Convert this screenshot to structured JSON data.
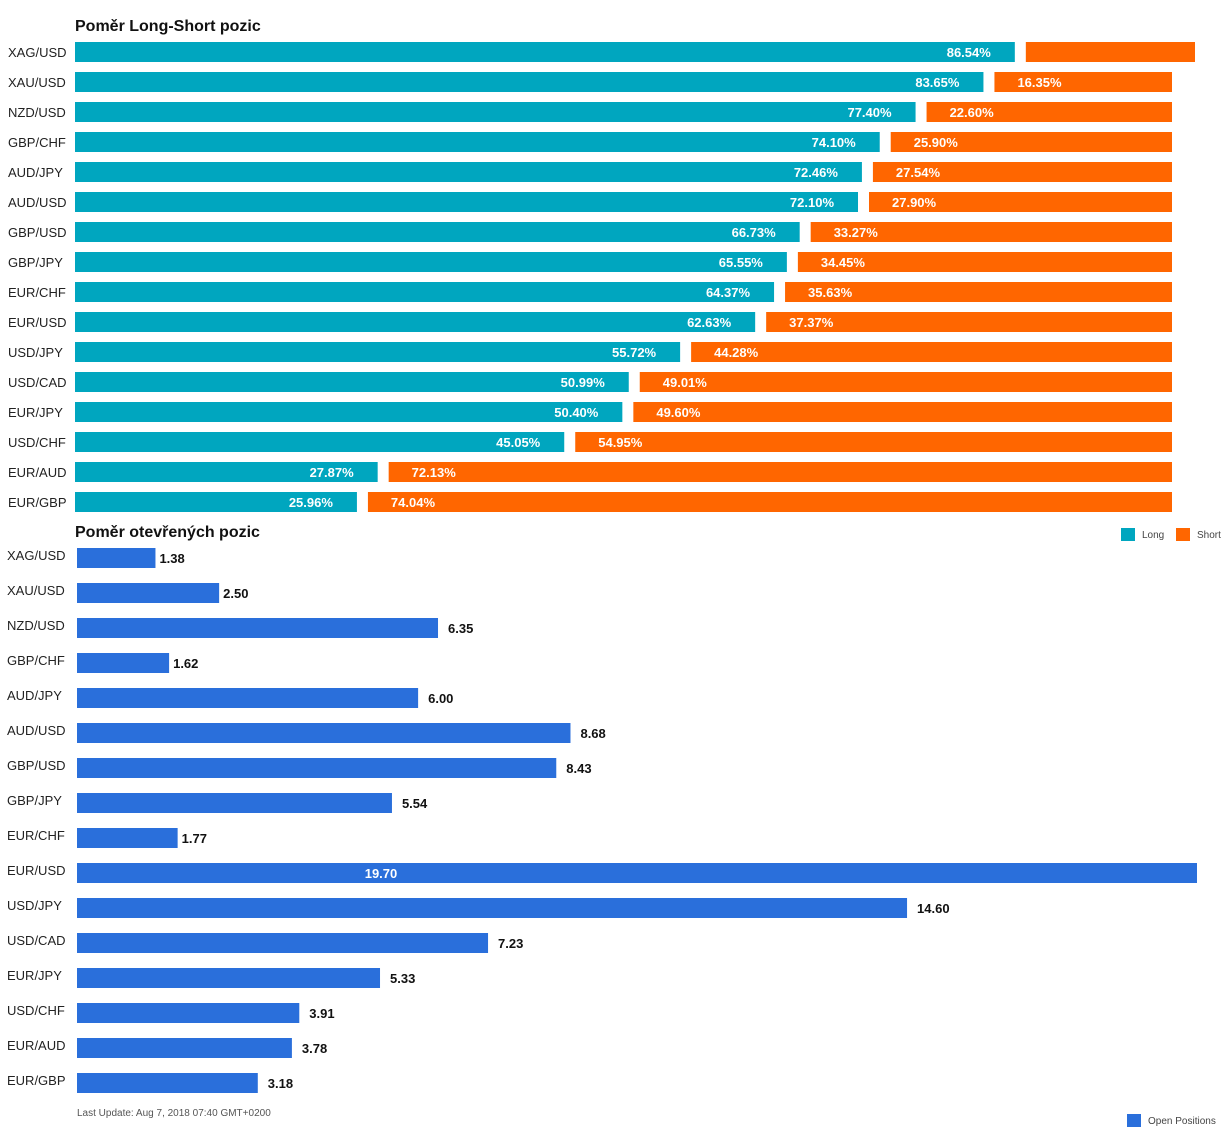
{
  "colors": {
    "long": "#00a6bf",
    "short": "#ff6600",
    "open": "#2a6fdb"
  },
  "chart_data": [
    {
      "type": "bar",
      "title": "Poměr Long-Short pozic",
      "orientation": "horizontal",
      "stacked": true,
      "categories": [
        "XAG/USD",
        "XAU/USD",
        "NZD/USD",
        "GBP/CHF",
        "AUD/JPY",
        "AUD/USD",
        "GBP/USD",
        "GBP/JPY",
        "EUR/CHF",
        "EUR/USD",
        "USD/JPY",
        "USD/CAD",
        "EUR/JPY",
        "USD/CHF",
        "EUR/AUD",
        "EUR/GBP"
      ],
      "series": [
        {
          "name": "Long",
          "values": [
            86.54,
            83.65,
            77.4,
            74.1,
            72.46,
            72.1,
            66.73,
            65.55,
            64.37,
            62.63,
            55.72,
            50.99,
            50.4,
            45.05,
            27.87,
            25.96
          ]
        },
        {
          "name": "Short",
          "values": [
            13.46,
            16.35,
            22.6,
            25.9,
            27.54,
            27.9,
            33.27,
            34.45,
            35.63,
            37.37,
            44.28,
            49.01,
            49.6,
            54.95,
            72.13,
            74.04
          ]
        }
      ],
      "data_labels": {
        "Long": [
          "86.54%",
          "83.65%",
          "77.40%",
          "74.10%",
          "72.46%",
          "72.10%",
          "66.73%",
          "65.55%",
          "64.37%",
          "62.63%",
          "55.72%",
          "50.99%",
          "50.40%",
          "45.05%",
          "27.87%",
          "25.96%"
        ],
        "Short": [
          "",
          "16.35%",
          "22.60%",
          "25.90%",
          "27.54%",
          "27.90%",
          "33.27%",
          "34.45%",
          "35.63%",
          "37.37%",
          "44.28%",
          "49.01%",
          "49.60%",
          "54.95%",
          "72.13%",
          "74.04%"
        ]
      },
      "xlim": [
        0,
        100
      ],
      "legend": {
        "placement": "bottom-right",
        "entries": [
          "Long",
          "Short"
        ]
      },
      "grid": false
    },
    {
      "type": "bar",
      "title": "Poměr otevřených pozic",
      "orientation": "horizontal",
      "categories": [
        "XAG/USD",
        "XAU/USD",
        "NZD/USD",
        "GBP/CHF",
        "AUD/JPY",
        "AUD/USD",
        "GBP/USD",
        "GBP/JPY",
        "EUR/CHF",
        "EUR/USD",
        "USD/JPY",
        "USD/CAD",
        "EUR/JPY",
        "USD/CHF",
        "EUR/AUD",
        "EUR/GBP"
      ],
      "series": [
        {
          "name": "Open Positions",
          "values": [
            1.38,
            2.5,
            6.35,
            1.62,
            6.0,
            8.68,
            8.43,
            5.54,
            1.77,
            19.7,
            14.6,
            7.23,
            5.33,
            3.91,
            3.78,
            3.18
          ]
        }
      ],
      "data_labels": [
        "1.38",
        "2.50",
        "6.35",
        "1.62",
        "6.00",
        "8.68",
        "8.43",
        "5.54",
        "1.77",
        "19.70",
        "14.60",
        "7.23",
        "5.33",
        "3.91",
        "3.78",
        "3.18"
      ],
      "xlim": [
        0,
        19.7
      ],
      "legend": {
        "placement": "bottom-right",
        "entries": [
          "Open Positions"
        ]
      },
      "grid": false
    }
  ],
  "footer": {
    "last_update": "Last Update: Aug 7, 2018 07:40 GMT+0200"
  }
}
